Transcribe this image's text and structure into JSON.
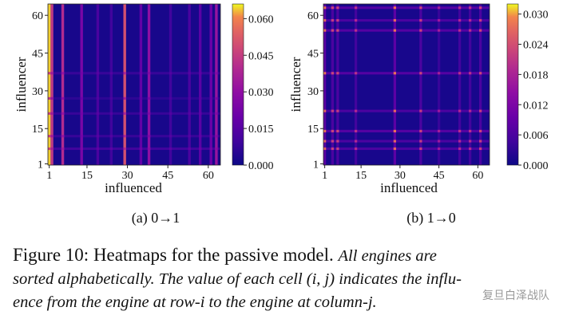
{
  "chart_data": [
    {
      "type": "heatmap",
      "subcaption": "(a) 0→1",
      "xlabel": "influenced",
      "ylabel": "influencer",
      "x_ticks": [
        1,
        15,
        30,
        45,
        60
      ],
      "y_ticks": [
        1,
        15,
        30,
        45,
        60
      ],
      "n": 64,
      "colorbar_ticks": [
        "0.000",
        "0.015",
        "0.030",
        "0.045",
        "0.060"
      ],
      "value_range": [
        0,
        0.066
      ],
      "colormap": "plasma",
      "base_value": 0.002,
      "columns": [
        {
          "index": 1,
          "value": 0.064
        },
        {
          "index": 2,
          "value": 0.044
        },
        {
          "index": 6,
          "value": 0.04
        },
        {
          "index": 13,
          "value": 0.024
        },
        {
          "index": 19,
          "value": 0.012
        },
        {
          "index": 24,
          "value": 0.01
        },
        {
          "index": 29,
          "value": 0.05
        },
        {
          "index": 35,
          "value": 0.018
        },
        {
          "index": 38,
          "value": 0.03
        },
        {
          "index": 46,
          "value": 0.01
        },
        {
          "index": 53,
          "value": 0.012
        },
        {
          "index": 57,
          "value": 0.016
        },
        {
          "index": 61,
          "value": 0.02
        },
        {
          "index": 63,
          "value": 0.032
        }
      ],
      "rows": [
        {
          "index": 7,
          "value": 0.01
        },
        {
          "index": 12,
          "value": 0.008
        },
        {
          "index": 21,
          "value": 0.008
        },
        {
          "index": 27,
          "value": 0.006
        },
        {
          "index": 37,
          "value": 0.008
        }
      ]
    },
    {
      "type": "heatmap",
      "subcaption": "(b) 1→0",
      "xlabel": "influenced",
      "ylabel": "influencer",
      "x_ticks": [
        1,
        15,
        30,
        45,
        60
      ],
      "y_ticks": [
        1,
        15,
        30,
        45,
        60
      ],
      "n": 64,
      "colorbar_ticks": [
        "0.000",
        "0.006",
        "0.012",
        "0.018",
        "0.024",
        "0.030"
      ],
      "value_range": [
        0,
        0.032
      ],
      "colormap": "plasma",
      "base_value": 0.001,
      "columns": [
        {
          "index": 1,
          "value": 0.008
        },
        {
          "index": 4,
          "value": 0.006
        },
        {
          "index": 6,
          "value": 0.006
        },
        {
          "index": 13,
          "value": 0.005
        },
        {
          "index": 28,
          "value": 0.008
        },
        {
          "index": 38,
          "value": 0.006
        },
        {
          "index": 45,
          "value": 0.004
        },
        {
          "index": 53,
          "value": 0.005
        },
        {
          "index": 57,
          "value": 0.005
        },
        {
          "index": 61,
          "value": 0.006
        }
      ],
      "rows": [
        {
          "index": 7,
          "value": 0.006
        },
        {
          "index": 10,
          "value": 0.006
        },
        {
          "index": 14,
          "value": 0.007
        },
        {
          "index": 22,
          "value": 0.006
        },
        {
          "index": 37,
          "value": 0.007
        },
        {
          "index": 54,
          "value": 0.007
        },
        {
          "index": 58,
          "value": 0.006
        },
        {
          "index": 63,
          "value": 0.007
        }
      ]
    }
  ],
  "caption": {
    "label": "Figure 10: Heatmaps for the passive model.",
    "text_line1": "All engines are",
    "text_line2": "sorted alphabetically. The value of each cell (i, j) indicates the influ-",
    "text_line3": "ence from the engine at row-i to the engine at column-j."
  },
  "watermark": "复旦白泽战队"
}
